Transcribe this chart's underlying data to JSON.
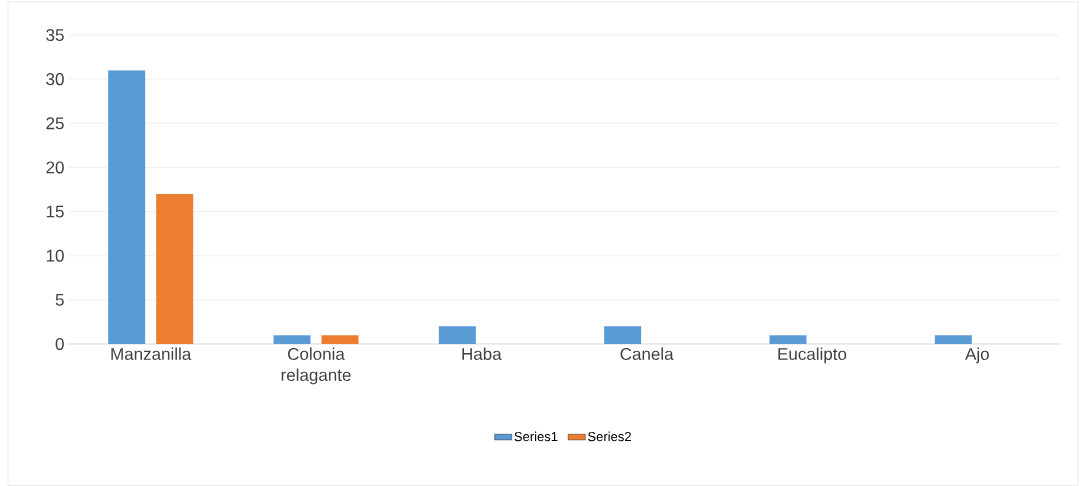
{
  "chart_data": {
    "type": "bar",
    "categories": [
      "Manzanilla",
      "Colonia relagante",
      "Haba",
      "Canela",
      "Eucalipto",
      "Ajo"
    ],
    "series": [
      {
        "name": "Series1",
        "color": "#5b9bd5",
        "values": [
          31,
          1,
          2,
          2,
          1,
          1
        ]
      },
      {
        "name": "Series2",
        "color": "#ed7d31",
        "values": [
          17,
          1,
          0,
          0,
          0,
          0
        ]
      }
    ],
    "ylim": [
      0,
      35
    ],
    "yticks": [
      0,
      5,
      10,
      15,
      20,
      25,
      30,
      35
    ],
    "grid": "y",
    "legend": "bottom"
  }
}
